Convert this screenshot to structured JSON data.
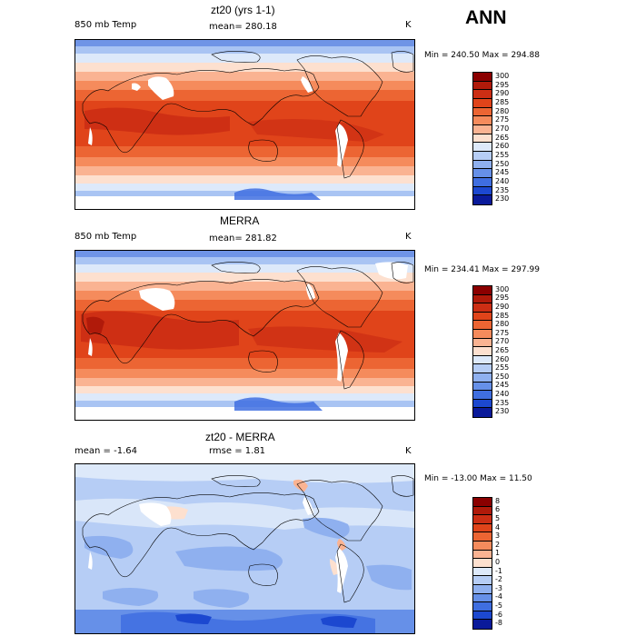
{
  "season": "ANN",
  "panels": [
    {
      "title": "zt20 (yrs 1-1)",
      "left_label": "850 mb Temp",
      "center_label": "mean=  280.18",
      "units": "K",
      "minmax": "Min = 240.50  Max = 294.88",
      "levels": [
        "300",
        "295",
        "290",
        "285",
        "280",
        "275",
        "270",
        "265",
        "260",
        "255",
        "250",
        "245",
        "240",
        "235",
        "230"
      ],
      "colors": [
        "#8b0000",
        "#b01a0a",
        "#cc2e14",
        "#e0441a",
        "#ec6533",
        "#f58b5c",
        "#fab392",
        "#fde0cf",
        "#dde9fa",
        "#b6cdf5",
        "#8fb0ef",
        "#6690e8",
        "#3f6ee0",
        "#1c48d0",
        "#0a1a9a"
      ],
      "field": "absolute"
    },
    {
      "title": "MERRA",
      "left_label": "850 mb Temp",
      "center_label": "mean=  281.82",
      "units": "K",
      "minmax": "Min = 234.41  Max = 297.99",
      "levels": [
        "300",
        "295",
        "290",
        "285",
        "280",
        "275",
        "270",
        "265",
        "260",
        "255",
        "250",
        "245",
        "240",
        "235",
        "230"
      ],
      "colors": [
        "#8b0000",
        "#b01a0a",
        "#cc2e14",
        "#e0441a",
        "#ec6533",
        "#f58b5c",
        "#fab392",
        "#fde0cf",
        "#dde9fa",
        "#b6cdf5",
        "#8fb0ef",
        "#6690e8",
        "#3f6ee0",
        "#1c48d0",
        "#0a1a9a"
      ],
      "field": "absolute"
    },
    {
      "title": "zt20 - MERRA",
      "left_label": "mean =   -1.64",
      "center_label": "rmse =    1.81",
      "units": "K",
      "minmax": "Min = -13.00  Max =   11.50",
      "levels": [
        "8",
        "6",
        "5",
        "4",
        "3",
        "2",
        "1",
        "0",
        "-1",
        "-2",
        "-3",
        "-4",
        "-5",
        "-6",
        "-8"
      ],
      "colors": [
        "#8b0000",
        "#b01a0a",
        "#cc2e14",
        "#e0441a",
        "#ec6533",
        "#f58b5c",
        "#fab392",
        "#fde0cf",
        "#dde9fa",
        "#b6cdf5",
        "#8fb0ef",
        "#6690e8",
        "#3f6ee0",
        "#1c48d0",
        "#0a1a9a"
      ],
      "field": "difference"
    }
  ]
}
